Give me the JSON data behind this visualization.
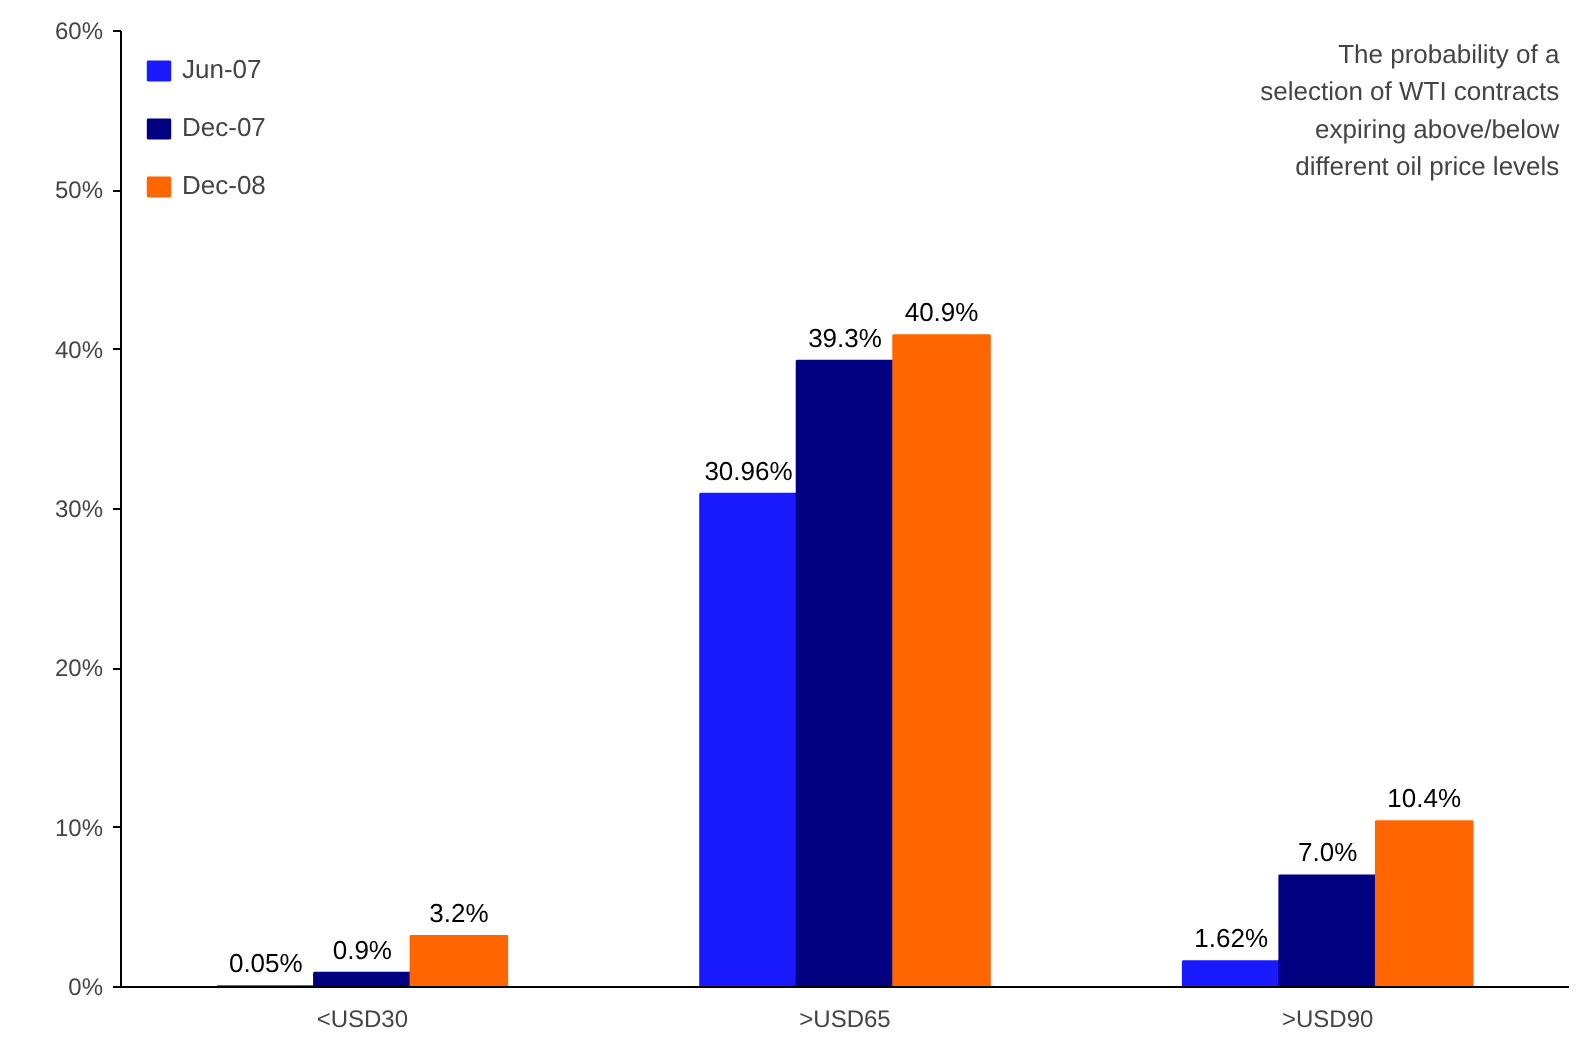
{
  "chart_data": {
    "type": "bar",
    "categories": [
      "<USD30",
      ">USD65",
      ">USD90"
    ],
    "series": [
      {
        "name": "Jun-07",
        "color": "#1a1aff",
        "values": [
          0.05,
          30.96,
          1.62
        ],
        "value_labels": [
          "0.05%",
          "30.96%",
          "1.62%"
        ]
      },
      {
        "name": "Dec-07",
        "color": "#000080",
        "values": [
          0.9,
          39.3,
          7.0
        ],
        "value_labels": [
          "0.9%",
          "39.3%",
          "7.0%"
        ]
      },
      {
        "name": "Dec-08",
        "color": "#ff6600",
        "values": [
          3.2,
          40.9,
          10.4
        ],
        "value_labels": [
          "3.2%",
          "40.9%",
          "10.4%"
        ]
      }
    ],
    "ylim": [
      0,
      60
    ],
    "yticks": [
      {
        "value": 0,
        "label": "0%"
      },
      {
        "value": 10,
        "label": "10%"
      },
      {
        "value": 20,
        "label": "20%"
      },
      {
        "value": 30,
        "label": "30%"
      },
      {
        "value": 40,
        "label": "40%"
      },
      {
        "value": 50,
        "label": "50%"
      },
      {
        "value": 60,
        "label": "60%"
      }
    ],
    "annotations": [
      "The probability of a selection of WTI contracts expiring above/below different oil price levels"
    ],
    "legend": "top left",
    "grid": false
  }
}
